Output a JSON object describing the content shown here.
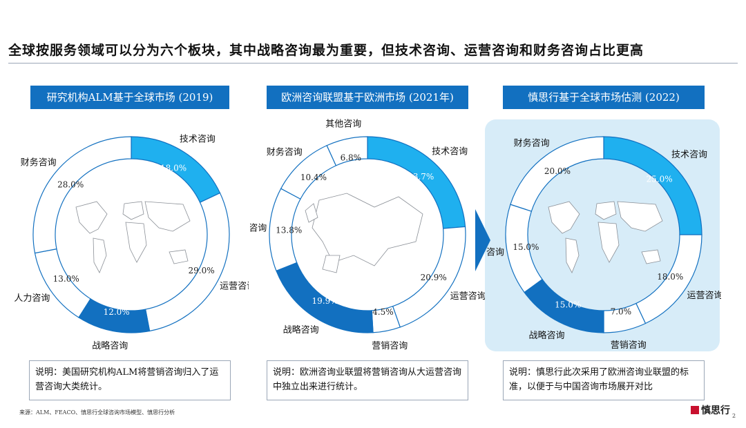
{
  "headline": "全球按服务领域可以分为六个板块，其中战略咨询最为重要，但技术咨询、运营咨询和财务咨询占比更高",
  "colors": {
    "primary": "#1270c0",
    "light": "#1fb0ef",
    "ring_white": "#ffffff",
    "highlight_bg": "#d7ecf8"
  },
  "chart_data": [
    {
      "type": "pie",
      "title": "研究机构ALM基于全球市场 (2019)",
      "slices": [
        {
          "label": "技术咨询",
          "value": 18.0,
          "value_label": "18.0%",
          "style": "light"
        },
        {
          "label": "运营咨询",
          "value": 29.0,
          "value_label": "29.0%",
          "style": "white"
        },
        {
          "label": "战略咨询",
          "value": 12.0,
          "value_label": "12.0%",
          "style": "dark"
        },
        {
          "label": "人力咨询",
          "value": 13.0,
          "value_label": "13.0%",
          "style": "white"
        },
        {
          "label": "财务咨询",
          "value": 28.0,
          "value_label": "28.0%",
          "style": "white"
        }
      ],
      "note": "说明：美国研究机构ALM将营销咨询归入了运营咨询大类统计。",
      "map": "world"
    },
    {
      "type": "pie",
      "title": "欧洲咨询联盟基于欧洲市场 (2021年)",
      "slices": [
        {
          "label": "技术咨询",
          "value": 23.7,
          "value_label": "23.7%",
          "style": "light"
        },
        {
          "label": "运营咨询",
          "value": 20.9,
          "value_label": "20.9%",
          "style": "white"
        },
        {
          "label": "营销咨询",
          "value": 4.5,
          "value_label": "4.5%",
          "style": "white"
        },
        {
          "label": "战略咨询",
          "value": 19.9,
          "value_label": "19.9%",
          "style": "dark"
        },
        {
          "label": "人力咨询",
          "value": 13.8,
          "value_label": "13.8%",
          "style": "white"
        },
        {
          "label": "财务咨询",
          "value": 10.4,
          "value_label": "10.4%",
          "style": "white"
        },
        {
          "label": "其他咨询",
          "value": 6.8,
          "value_label": "6.8%",
          "style": "white"
        }
      ],
      "note": "说明：欧洲咨询业联盟将营销咨询从大运营咨询中独立出来进行统计。",
      "map": "europe"
    },
    {
      "type": "pie",
      "title": "慎思行基于全球市场估测 (2022)",
      "slices": [
        {
          "label": "技术咨询",
          "value": 25.0,
          "value_label": "25.0%",
          "style": "light"
        },
        {
          "label": "运营咨询",
          "value": 18.0,
          "value_label": "18.0%",
          "style": "white"
        },
        {
          "label": "营销咨询",
          "value": 7.0,
          "value_label": "7.0%",
          "style": "white"
        },
        {
          "label": "战略咨询",
          "value": 15.0,
          "value_label": "15.0%",
          "style": "dark"
        },
        {
          "label": "人力咨询",
          "value": 15.0,
          "value_label": "15.0%",
          "style": "white"
        },
        {
          "label": "财务咨询",
          "value": 20.0,
          "value_label": "20.0%",
          "style": "white"
        }
      ],
      "note": "说明：慎思行此次采用了欧洲咨询业联盟的标准，以便于与中国咨询市场展开对比",
      "map": "world"
    }
  ],
  "source": "来源：ALM、FEACO、慎思行全球咨询市场模型、慎思行分析",
  "logo": "慎思行",
  "page_number": "2"
}
